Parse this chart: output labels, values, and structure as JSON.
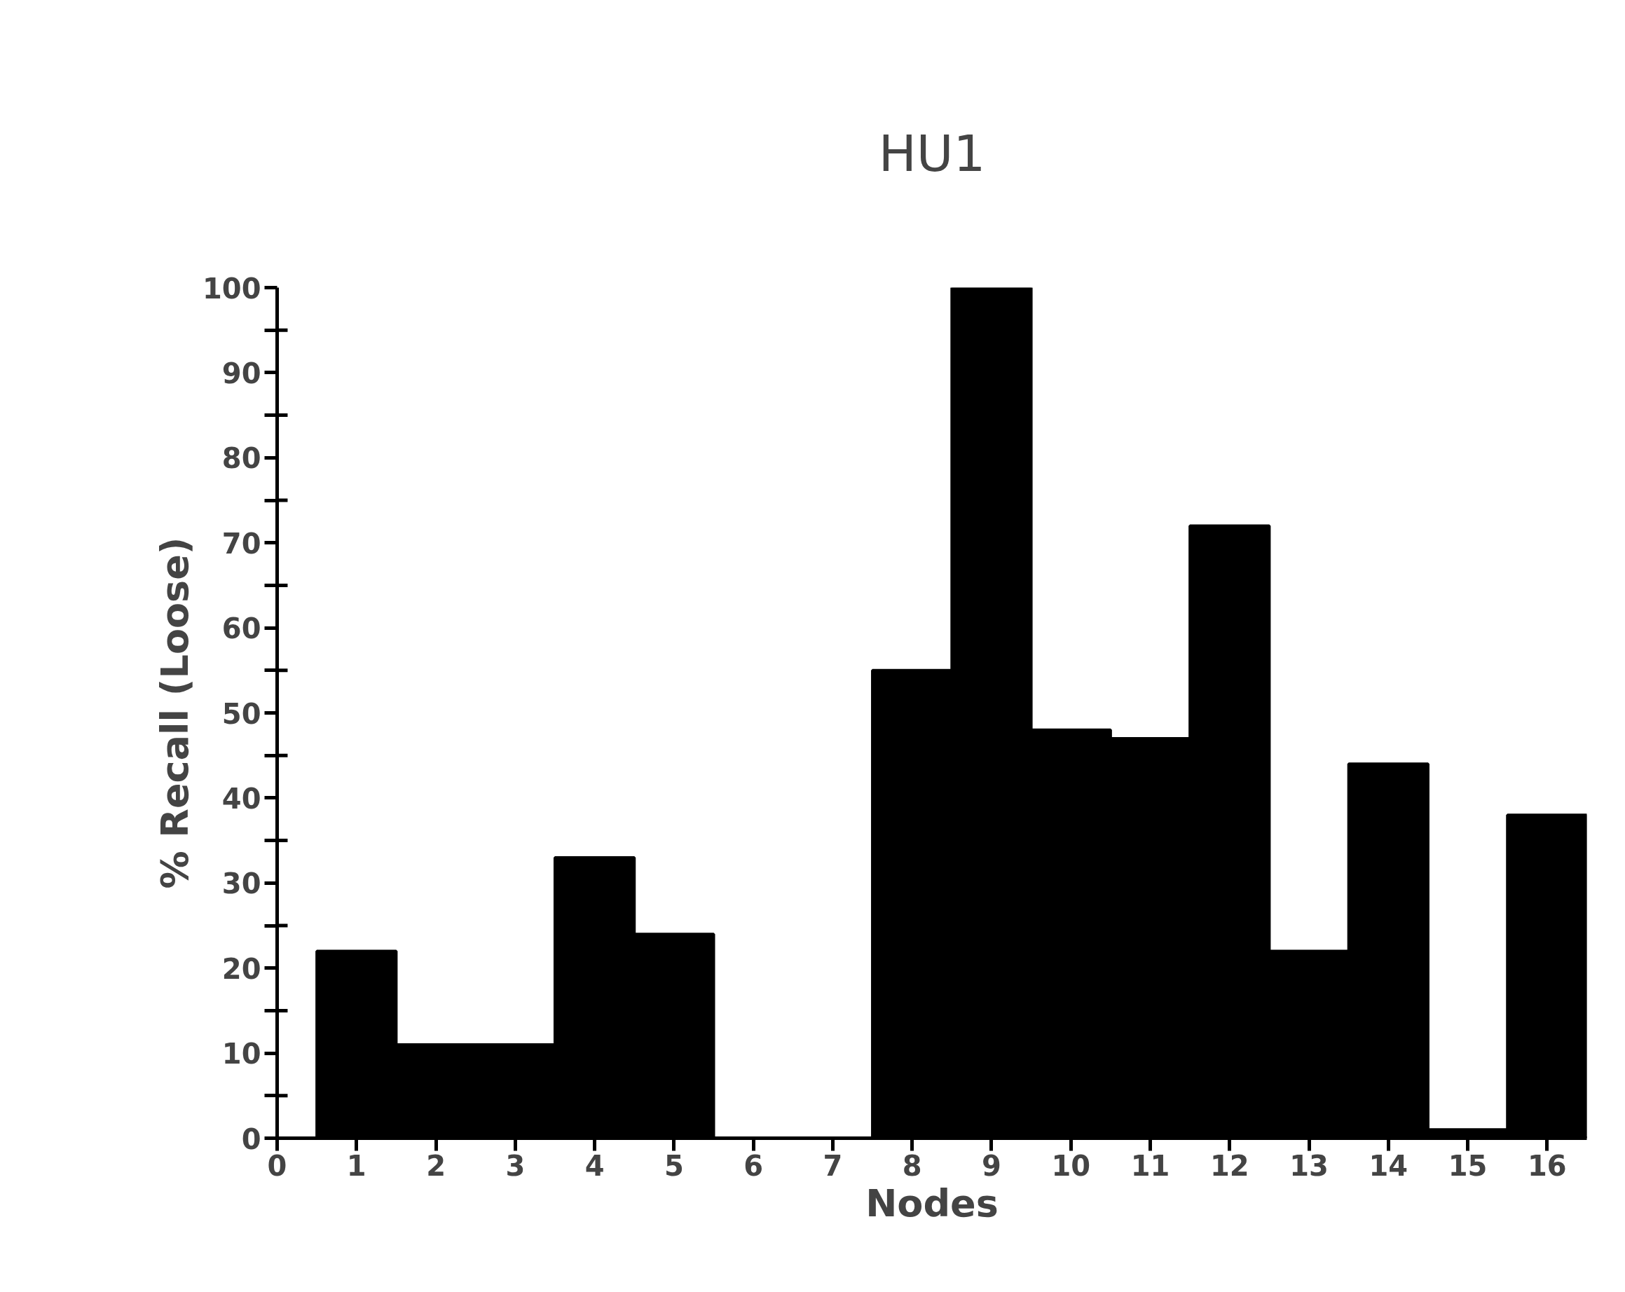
{
  "chart_data": {
    "type": "bar",
    "title": "HU1",
    "xlabel": "Nodes",
    "ylabel": "% Recall (Loose)",
    "x": [
      1,
      2,
      3,
      4,
      5,
      6,
      7,
      8,
      9,
      10,
      11,
      12,
      13,
      14,
      15,
      16
    ],
    "values": [
      22,
      11,
      11,
      33,
      24,
      0,
      0,
      55,
      100,
      48,
      47,
      72,
      22,
      44,
      1,
      38
    ],
    "color": "#000000",
    "xlim": [
      0,
      16.5
    ],
    "xticks": [
      0,
      1,
      2,
      3,
      4,
      5,
      6,
      7,
      8,
      9,
      10,
      11,
      12,
      13,
      14,
      15,
      16
    ],
    "ylim": [
      0,
      100
    ],
    "yticks": [
      0,
      {
        "value": 5,
        "label": null
      },
      10,
      {
        "value": 15,
        "label": null
      },
      20,
      {
        "value": 25,
        "label": null
      },
      30,
      {
        "value": 35,
        "label": null
      },
      40,
      {
        "value": 45,
        "label": null
      },
      50,
      {
        "value": 55,
        "label": null
      },
      60,
      {
        "value": 65,
        "label": null
      },
      70,
      {
        "value": 75,
        "label": null
      },
      80,
      {
        "value": 85,
        "label": null
      },
      90,
      {
        "value": 95,
        "label": null
      },
      100
    ],
    "grid": false
  }
}
